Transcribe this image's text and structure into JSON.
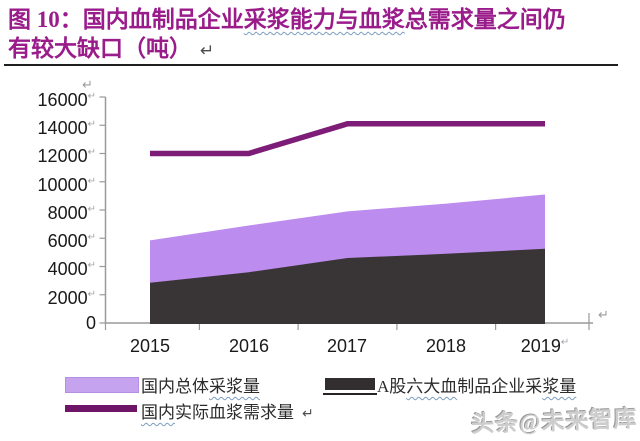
{
  "title": {
    "part1": "图 10：国内血制品企业",
    "wavy": "采浆能力与血浆",
    "part2": "总需求量之间仍",
    "line2": "有较大缺口（吨）",
    "return_mark": "↵"
  },
  "marks": {
    "return": "↵"
  },
  "chart_data": {
    "type": "area+line",
    "title": "国内血制品企业采浆能力与血浆总需求量之间仍有较大缺口（吨）",
    "unit": "吨",
    "categories": [
      "2015",
      "2016",
      "2017",
      "2018",
      "2019"
    ],
    "series": [
      {
        "name": "国内总体采浆量",
        "type": "area",
        "color": "#bd8cef",
        "values": [
          5850,
          6900,
          7900,
          8450,
          9100
        ]
      },
      {
        "name": "A股六大血制品企业采浆量",
        "type": "area",
        "color": "#393536",
        "values": [
          2850,
          3600,
          4600,
          4900,
          5250
        ]
      },
      {
        "name": "国内实际血浆需求量",
        "type": "line",
        "color": "#7d1d78",
        "values": [
          12000,
          12000,
          14100,
          14100,
          14100
        ]
      }
    ],
    "ylim": [
      0,
      16000
    ],
    "y_ticks": [
      "16000",
      "14000",
      "12000",
      "10000",
      "8000",
      "6000",
      "4000",
      "2000",
      "0"
    ],
    "grid": false,
    "legend_position": "bottom"
  },
  "legend": {
    "item1": {
      "pre": "国内总体",
      "wavy": "采浆量"
    },
    "item2": {
      "pre": "A股",
      "wavy1": "六大血",
      "mid": "制品企业采",
      "wavy2": "浆量"
    },
    "item3": {
      "wavy": "国内",
      "rest": "实际血浆需求量"
    }
  },
  "watermark": "头条@未来智库"
}
